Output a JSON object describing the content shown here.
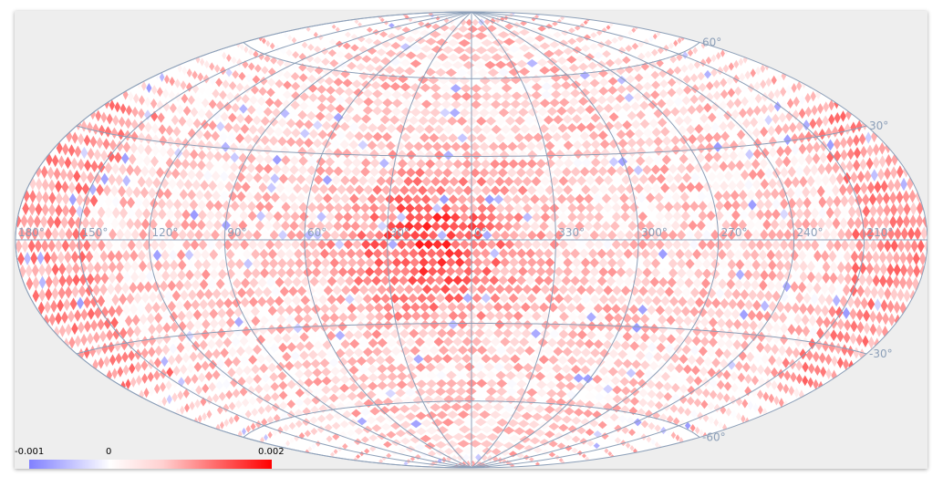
{
  "map": {
    "projection": "Hammer-Aitoff (all-sky)",
    "grid_color": "#8c9fb8",
    "longitude_labels": [
      "180°",
      "150°",
      "120°",
      "90°",
      "60°",
      "30°",
      "0°",
      "330°",
      "300°",
      "270°",
      "240°",
      "210°"
    ],
    "longitude_values": [
      180,
      150,
      120,
      90,
      60,
      30,
      0,
      -30,
      -60,
      -90,
      -120,
      -150
    ],
    "latitude_labels": [
      "60°",
      "30°",
      "-30°",
      "-60°"
    ],
    "latitude_values": [
      60,
      30,
      -30,
      -60
    ]
  },
  "colorbar": {
    "min_label": "-0.001",
    "mid_label": "0",
    "max_label": "0.002",
    "min_value": -0.001,
    "max_value": 0.002,
    "colors": {
      "low": "#8080ff",
      "zero": "#ffffff",
      "high": "#ff0000"
    }
  }
}
